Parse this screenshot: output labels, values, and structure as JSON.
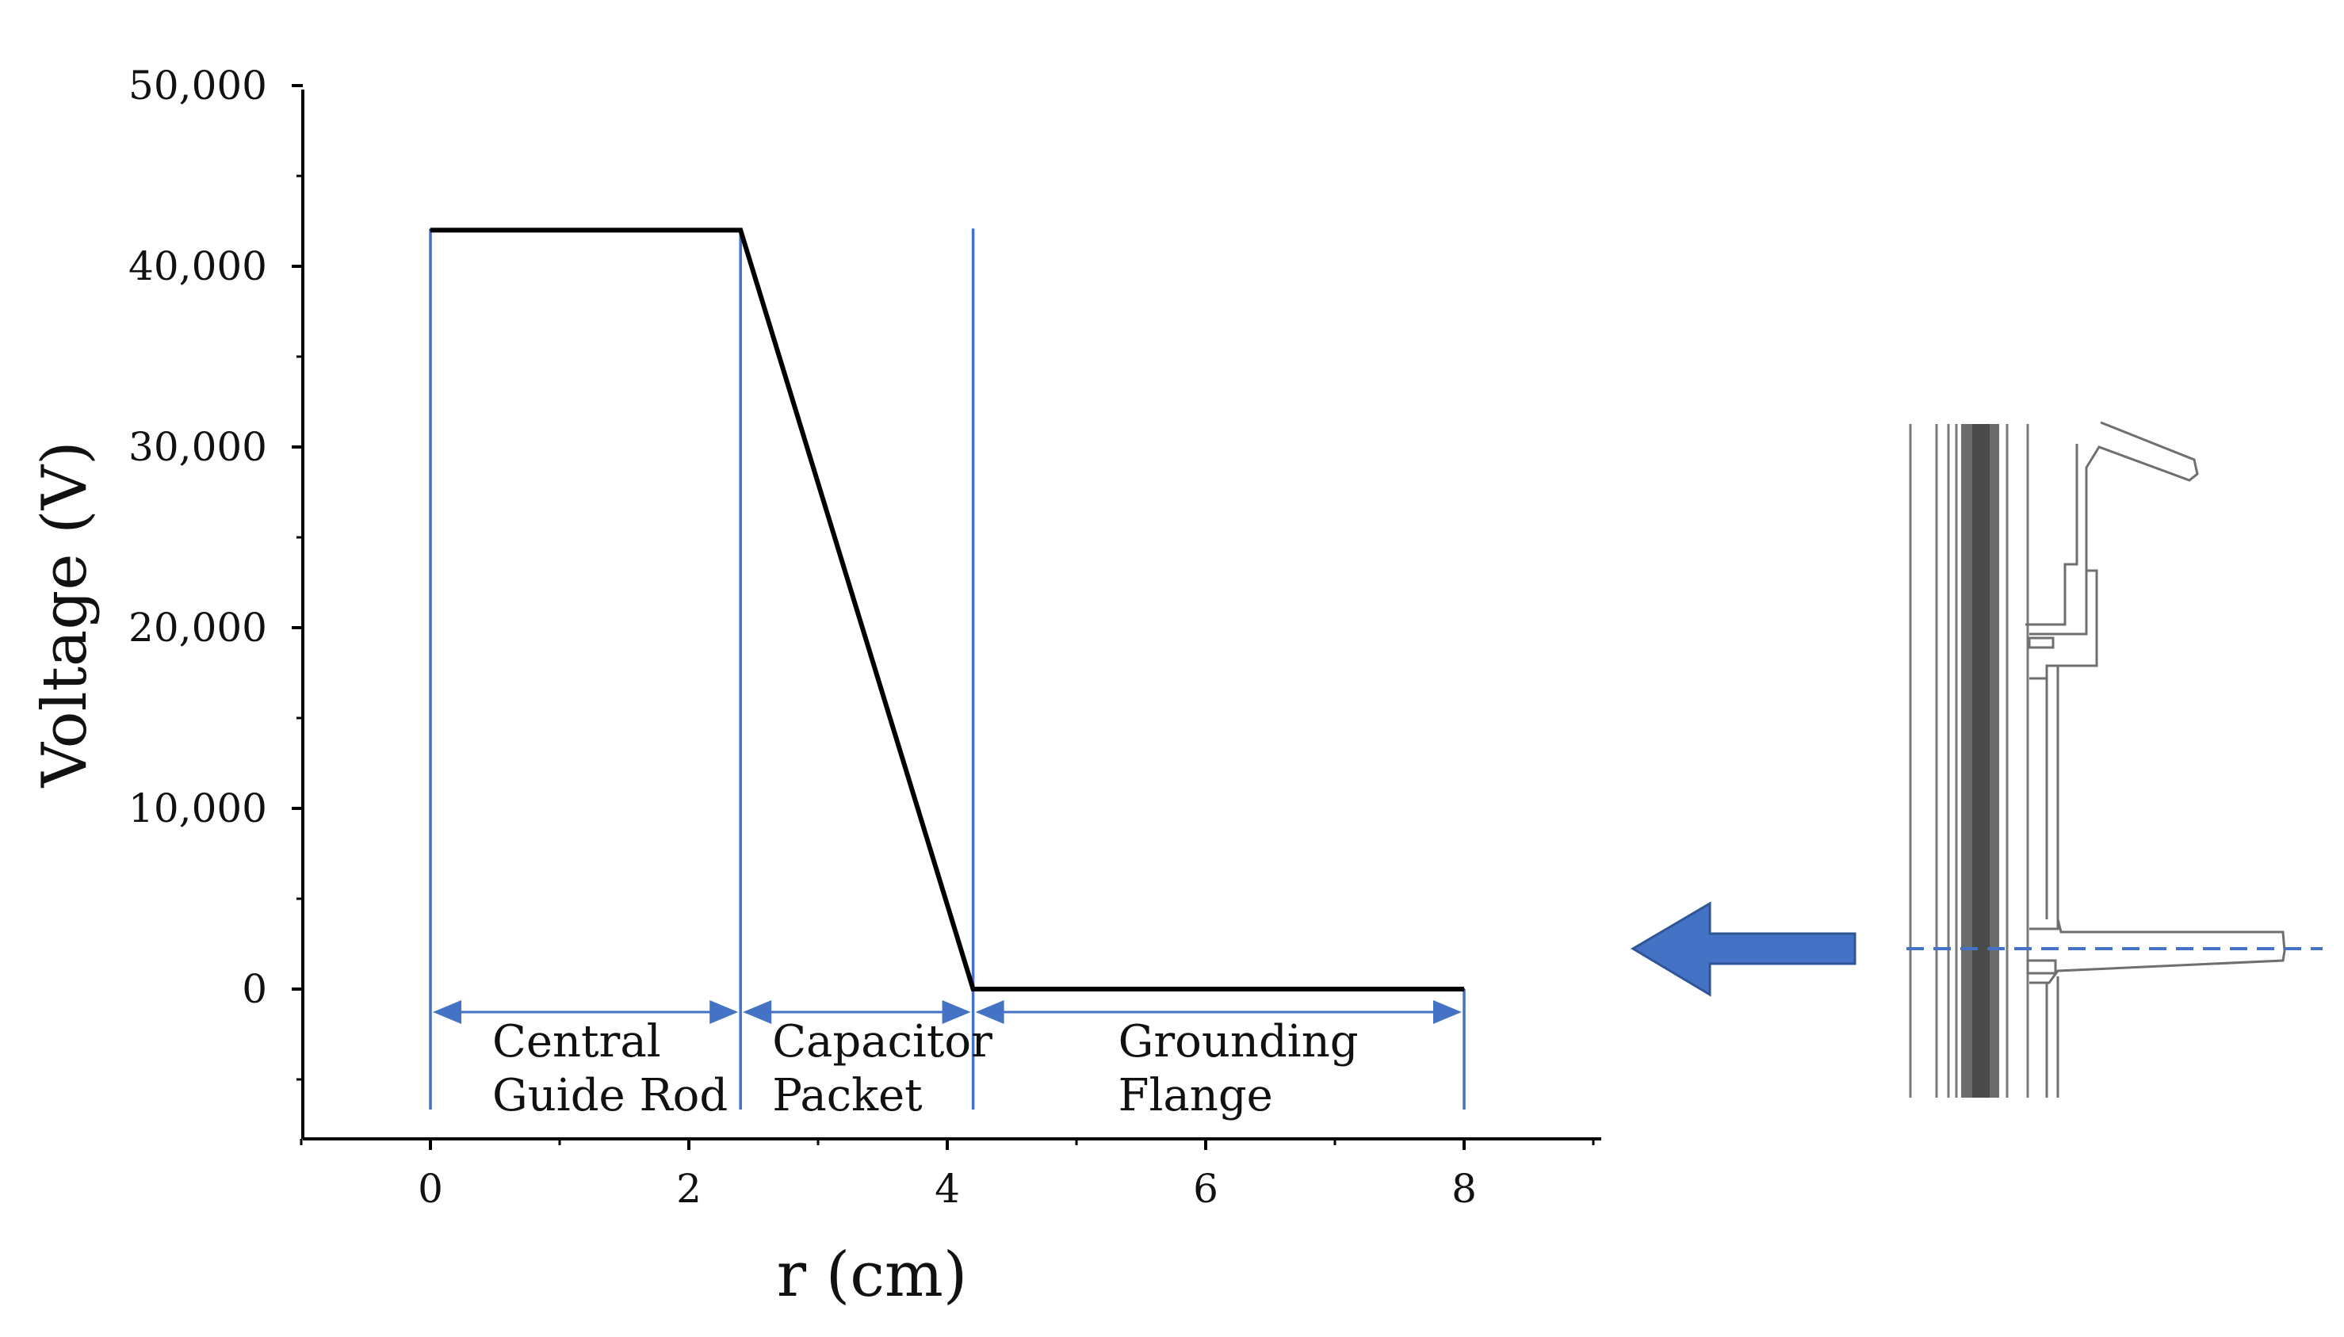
{
  "chart_data": {
    "type": "line",
    "title": "",
    "xlabel": "r (cm)",
    "ylabel": "Voltage (V)",
    "xlim": [
      -1,
      9
    ],
    "ylim": [
      -8000,
      50000
    ],
    "x_ticks": [
      0,
      2,
      4,
      6,
      8
    ],
    "x_tick_labels": [
      "0",
      "2",
      "4",
      "6",
      "8"
    ],
    "y_ticks": [
      0,
      10000,
      20000,
      30000,
      40000,
      50000
    ],
    "y_tick_labels": [
      "0",
      "10,000",
      "20,000",
      "30,000",
      "40,000",
      "50,000"
    ],
    "grid": false,
    "series": [
      {
        "x": [
          0,
          2.4,
          4.2,
          8
        ],
        "y": [
          42000,
          42000,
          0,
          0
        ],
        "color": "#000000"
      }
    ],
    "region_boundaries": [
      0,
      2.4,
      4.2,
      8
    ],
    "regions": [
      {
        "from": 0,
        "to": 2.4,
        "label_lines": [
          "Central",
          "Guide Rod"
        ]
      },
      {
        "from": 2.4,
        "to": 4.2,
        "label_lines": [
          "Capacitor",
          "Packet"
        ]
      },
      {
        "from": 4.2,
        "to": 8,
        "label_lines": [
          "Grounding",
          "Flange"
        ]
      }
    ],
    "colors": {
      "line": "#000000",
      "region": "#4472C4",
      "axis": "#000000"
    }
  },
  "inset": {
    "description_icon": "coaxial-cross-section-icon",
    "arrow_direction": "left",
    "arrow_color": "#4472C4",
    "section_line_style": "dashed"
  }
}
